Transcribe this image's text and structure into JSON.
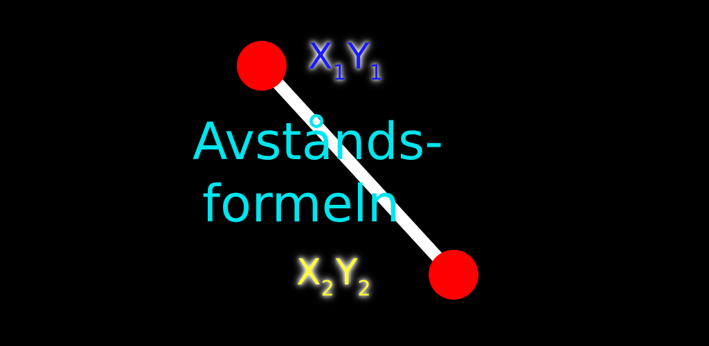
{
  "colors": {
    "background": "#000000",
    "title": "#00e5ee",
    "point": "#ff0000",
    "connector": "#ffffff",
    "label1": "#1a1aff",
    "label2": "#ffff33"
  },
  "point1": {
    "x": "X",
    "x_sub": "1",
    "y": "Y",
    "y_sub": "1"
  },
  "point2": {
    "x": "X",
    "x_sub": "2",
    "y": "Y",
    "y_sub": "2"
  },
  "title": {
    "line1": "Avstånds-",
    "line2": "formeln"
  }
}
